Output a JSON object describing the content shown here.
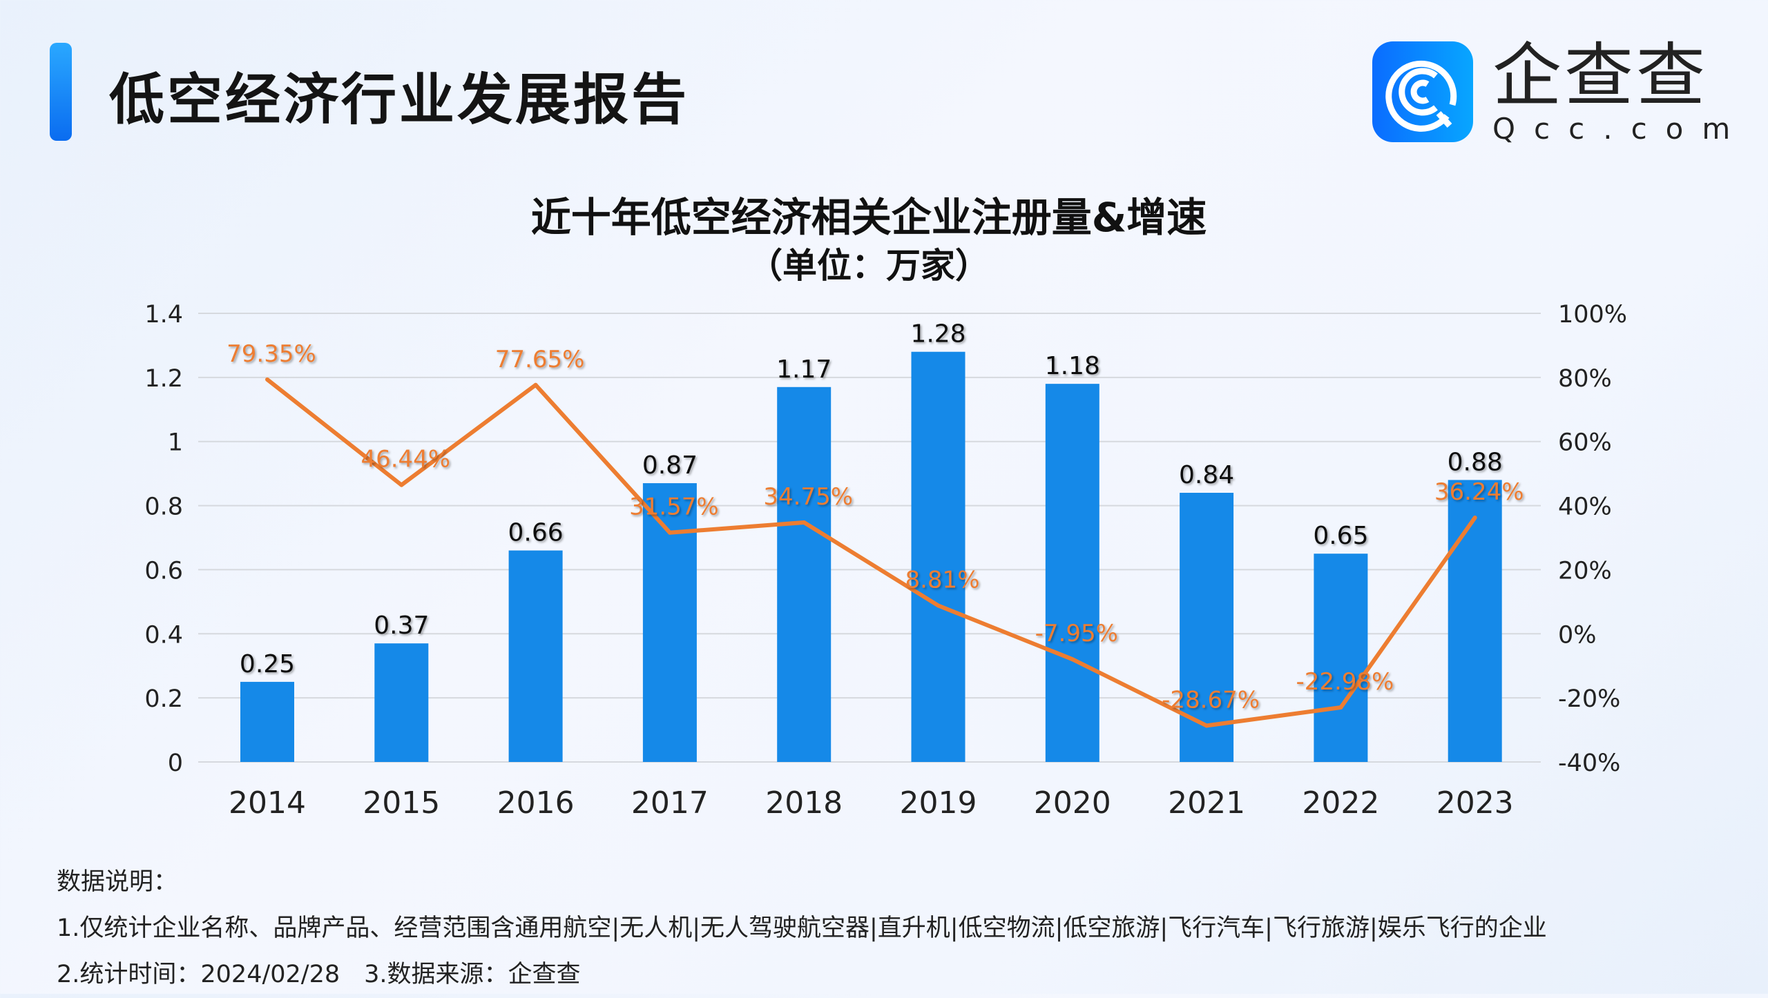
{
  "header": {
    "title": "低空经济行业发展报告"
  },
  "logo": {
    "name_cn": "企查查",
    "name_en": "Qcc.com",
    "icon": "qcc-logo-icon",
    "color": "#0a7cff"
  },
  "chart_data": {
    "type": "bar+line",
    "title": "近十年低空经济相关企业注册量&增速",
    "subtitle": "（单位：万家）",
    "categories": [
      "2014",
      "2015",
      "2016",
      "2017",
      "2018",
      "2019",
      "2020",
      "2021",
      "2022",
      "2023"
    ],
    "series": [
      {
        "type": "bar",
        "axis": "left",
        "color": "#1589e8",
        "values": [
          0.25,
          0.37,
          0.66,
          0.87,
          1.17,
          1.28,
          1.18,
          0.84,
          0.65,
          0.88
        ],
        "labels": [
          "0.25",
          "0.37",
          "0.66",
          "0.87",
          "1.17",
          "1.28",
          "1.18",
          "0.84",
          "0.65",
          "0.88"
        ]
      },
      {
        "type": "line",
        "axis": "right",
        "color": "#ed7d31",
        "values": [
          79.35,
          46.44,
          77.65,
          31.57,
          34.75,
          8.81,
          -7.95,
          -28.67,
          -22.98,
          36.24
        ],
        "labels": [
          "79.35%",
          "46.44%",
          "77.65%",
          "31.57%",
          "34.75%",
          "8.81%",
          "-7.95%",
          "-28.67%",
          "-22.98%",
          "36.24%"
        ]
      }
    ],
    "y_left": {
      "range": [
        0,
        1.4
      ],
      "ticks": [
        "0",
        "0.2",
        "0.4",
        "0.6",
        "0.8",
        "1",
        "1.2",
        "1.4"
      ]
    },
    "y_right": {
      "range": [
        -40,
        100
      ],
      "ticks": [
        "-40%",
        "-20%",
        "0%",
        "20%",
        "40%",
        "60%",
        "80%",
        "100%"
      ]
    },
    "grid": true
  },
  "notes": {
    "heading": "数据说明：",
    "line1": "1.仅统计企业名称、品牌产品、经营范围含通用航空|无人机|无人驾驶航空器|直升机|低空物流|低空旅游|飞行汽车|飞行旅游|娱乐飞行的企业",
    "line2": "2.统计时间：2024/02/28　3.数据来源：企查查"
  }
}
